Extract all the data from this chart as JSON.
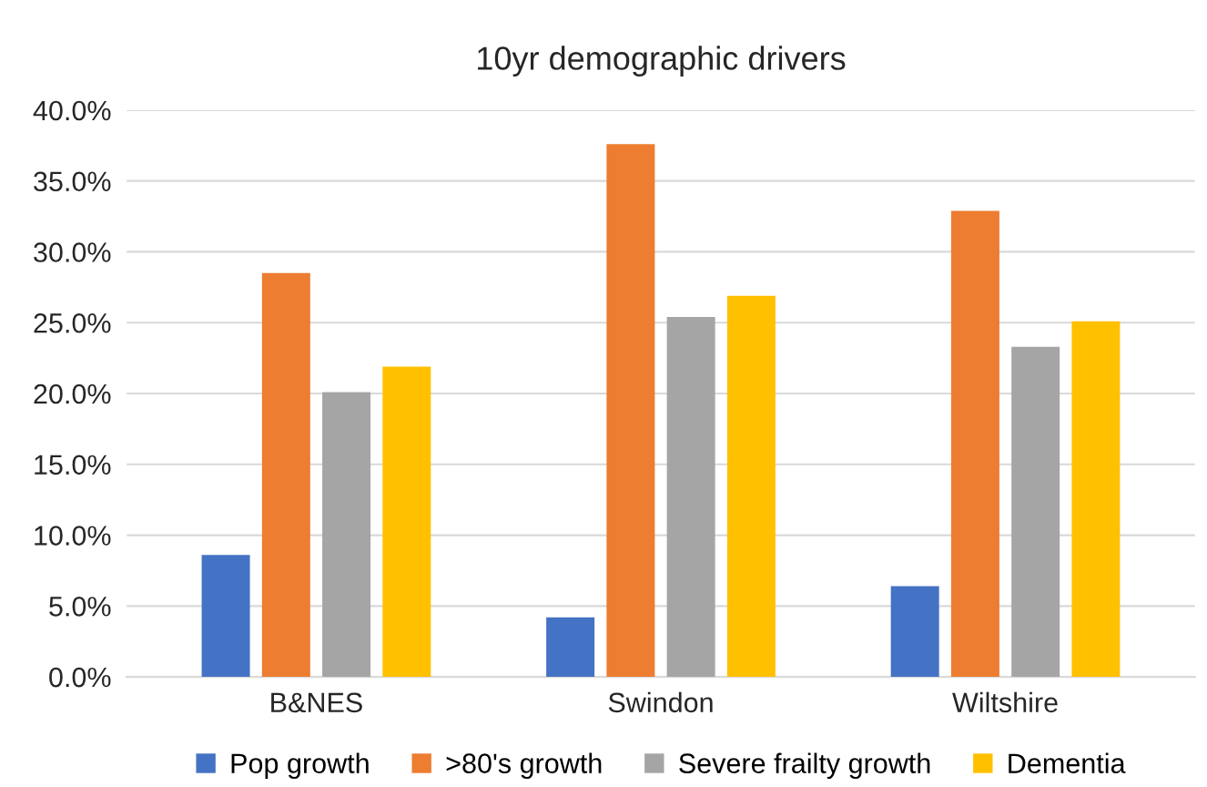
{
  "chart_data": {
    "type": "bar",
    "title": "10yr demographic drivers",
    "categories": [
      "B&NES",
      "Swindon",
      "Wiltshire"
    ],
    "series": [
      {
        "name": "Pop growth",
        "color": "#4472c4",
        "values": [
          8.6,
          4.2,
          6.4
        ]
      },
      {
        "name": ">80's growth",
        "color": "#ed7d31",
        "values": [
          28.5,
          37.6,
          32.9
        ]
      },
      {
        "name": "Severe frailty growth",
        "color": "#a5a5a5",
        "values": [
          20.1,
          25.4,
          23.3
        ]
      },
      {
        "name": "Dementia",
        "color": "#ffc000",
        "values": [
          21.9,
          26.9,
          25.1
        ]
      }
    ],
    "ylim": [
      0,
      40
    ],
    "yticks": [
      {
        "value": 0,
        "label": "0.0%"
      },
      {
        "value": 5,
        "label": "5.0%"
      },
      {
        "value": 10,
        "label": "10.0%"
      },
      {
        "value": 15,
        "label": "15.0%"
      },
      {
        "value": 20,
        "label": "20.0%"
      },
      {
        "value": 25,
        "label": "25.0%"
      },
      {
        "value": 30,
        "label": "30.0%"
      },
      {
        "value": 35,
        "label": "35.0%"
      },
      {
        "value": 40,
        "label": "40.0%"
      }
    ],
    "grid": "y",
    "legend": "bottom"
  }
}
